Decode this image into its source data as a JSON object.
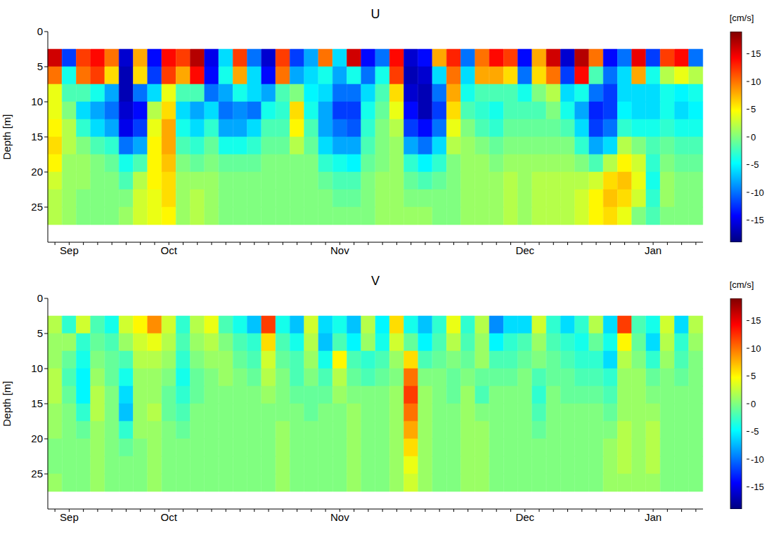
{
  "chart_data": [
    {
      "type": "heatmap",
      "title": "U",
      "y_label": "Depth [m]",
      "categories": [
        null,
        "Sep",
        null,
        null,
        null,
        null,
        null,
        null,
        "Oct",
        null,
        null,
        null,
        null,
        null,
        null,
        null,
        null,
        null,
        null,
        null,
        "Nov",
        null,
        null,
        null,
        null,
        null,
        null,
        null,
        null,
        null,
        null,
        null,
        null,
        "Dec",
        null,
        null,
        null,
        null,
        null,
        null,
        null,
        null,
        "Jan",
        null,
        null,
        null
      ],
      "ylim": [
        30,
        0
      ],
      "yticks": [
        0,
        5,
        10,
        15,
        20,
        25
      ],
      "depth_bins": [
        2.5,
        5,
        7.5,
        10,
        12.5,
        15,
        17.5,
        20,
        22.5,
        25,
        27.5
      ],
      "z": [
        [
          16,
          10,
          4,
          4,
          5,
          6,
          5,
          3,
          2,
          2
        ],
        [
          -12,
          -4,
          -2,
          0,
          2,
          2,
          1,
          1,
          1,
          1
        ],
        [
          12,
          10,
          -2,
          -6,
          -3,
          0,
          1,
          1,
          0,
          0
        ],
        [
          14,
          12,
          -4,
          -8,
          -6,
          -2,
          0,
          0,
          0,
          0
        ],
        [
          10,
          6,
          -8,
          -10,
          -8,
          -3,
          -1,
          0,
          0,
          0
        ],
        [
          -16,
          -17,
          -17,
          -16,
          -15,
          -10,
          -4,
          -2,
          0,
          1
        ],
        [
          8,
          6,
          -10,
          -14,
          -12,
          -8,
          -2,
          2,
          3,
          3
        ],
        [
          -14,
          -12,
          -6,
          2,
          4,
          5,
          5,
          5,
          4,
          4
        ],
        [
          14,
          12,
          4,
          6,
          8,
          8,
          7,
          6,
          6,
          5
        ],
        [
          12,
          8,
          -2,
          -6,
          -4,
          -2,
          0,
          1,
          1,
          1
        ],
        [
          17,
          14,
          -2,
          -8,
          -6,
          -3,
          -1,
          1,
          2,
          2
        ],
        [
          -15,
          -14,
          -10,
          -6,
          -3,
          -1,
          0,
          1,
          1,
          1
        ],
        [
          -6,
          -4,
          -8,
          -10,
          -8,
          -4,
          -1,
          0,
          0,
          0
        ],
        [
          12,
          8,
          -4,
          -9,
          -8,
          -4,
          -1,
          0,
          0,
          0
        ],
        [
          -10,
          -6,
          -6,
          -10,
          -6,
          -3,
          -1,
          0,
          0,
          0
        ],
        [
          -16,
          -14,
          -8,
          -4,
          -2,
          -1,
          0,
          0,
          0,
          0
        ],
        [
          12,
          10,
          -2,
          -3,
          -2,
          -1,
          0,
          0,
          0,
          0
        ],
        [
          -12,
          -8,
          0,
          6,
          5,
          2,
          0,
          0,
          0,
          0
        ],
        [
          -8,
          -6,
          -5,
          -4,
          -2,
          -1,
          0,
          0,
          0,
          0
        ],
        [
          10,
          -4,
          -6,
          -8,
          -8,
          -6,
          -3,
          -1,
          0,
          0
        ],
        [
          -6,
          -8,
          -10,
          -12,
          -10,
          -8,
          -4,
          -2,
          -1,
          0
        ],
        [
          16,
          -4,
          -10,
          -12,
          -11,
          -8,
          -5,
          -2,
          -1,
          0
        ],
        [
          -14,
          -10,
          -6,
          -4,
          -3,
          -2,
          -1,
          0,
          0,
          0
        ],
        [
          -10,
          -4,
          -2,
          -1,
          0,
          0,
          0,
          1,
          1,
          1
        ],
        [
          14,
          12,
          6,
          4,
          2,
          1,
          1,
          1,
          1,
          1
        ],
        [
          -16,
          -17,
          -16,
          -14,
          -12,
          -8,
          -3,
          -1,
          0,
          1
        ],
        [
          -14,
          -16,
          -17,
          -17,
          -14,
          -10,
          -5,
          -2,
          0,
          1
        ],
        [
          8,
          -6,
          -10,
          -12,
          -10,
          -6,
          -3,
          -1,
          0,
          0
        ],
        [
          13,
          10,
          8,
          6,
          4,
          2,
          0,
          0,
          0,
          0
        ],
        [
          -10,
          -6,
          -4,
          -2,
          0,
          1,
          1,
          1,
          1,
          1
        ],
        [
          10,
          8,
          -2,
          -3,
          -2,
          0,
          1,
          1,
          1,
          1
        ],
        [
          14,
          8,
          -2,
          -4,
          -3,
          -1,
          0,
          1,
          1,
          1
        ],
        [
          12,
          6,
          -2,
          -2,
          -1,
          0,
          1,
          2,
          2,
          2
        ],
        [
          -14,
          -10,
          -4,
          -2,
          -1,
          0,
          1,
          1,
          1,
          1
        ],
        [
          8,
          6,
          0,
          -2,
          -1,
          0,
          1,
          2,
          2,
          2
        ],
        [
          16,
          10,
          2,
          0,
          -1,
          0,
          1,
          2,
          2,
          2
        ],
        [
          -16,
          -12,
          -6,
          -4,
          -2,
          0,
          1,
          2,
          2,
          2
        ],
        [
          17,
          14,
          -4,
          -8,
          -6,
          -3,
          0,
          2,
          3,
          3
        ],
        [
          10,
          -2,
          -10,
          -13,
          -12,
          -8,
          -2,
          3,
          5,
          5
        ],
        [
          -14,
          -10,
          -12,
          -12,
          -10,
          -6,
          2,
          6,
          7,
          6
        ],
        [
          -10,
          -6,
          -6,
          -5,
          -3,
          2,
          5,
          7,
          6,
          4
        ],
        [
          15,
          8,
          -6,
          -6,
          -4,
          0,
          3,
          4,
          3,
          0
        ],
        [
          -12,
          -4,
          -6,
          -6,
          -4,
          -2,
          -3,
          -4,
          -3,
          -2
        ],
        [
          12,
          2,
          -4,
          -4,
          -3,
          -1,
          0,
          1,
          1,
          0
        ],
        [
          14,
          4,
          -5,
          -6,
          -4,
          -2,
          -1,
          0,
          0,
          0
        ],
        [
          -10,
          2,
          -4,
          -5,
          -4,
          -2,
          -1,
          0,
          0,
          0
        ]
      ],
      "colorbar": {
        "label": "[cm/s]",
        "range": [
          -19,
          19
        ],
        "ticks": [
          -15,
          -10,
          -5,
          0,
          5,
          10,
          15
        ]
      }
    },
    {
      "type": "heatmap",
      "title": "V",
      "y_label": "Depth [m]",
      "categories": [
        null,
        "Sep",
        null,
        null,
        null,
        null,
        null,
        null,
        "Oct",
        null,
        null,
        null,
        null,
        null,
        null,
        null,
        null,
        null,
        null,
        null,
        "Nov",
        null,
        null,
        null,
        null,
        null,
        null,
        null,
        null,
        null,
        null,
        null,
        null,
        "Dec",
        null,
        null,
        null,
        null,
        null,
        null,
        null,
        null,
        "Jan",
        null,
        null,
        null
      ],
      "ylim": [
        30,
        0
      ],
      "yticks": [
        0,
        5,
        10,
        15,
        20,
        25
      ],
      "depth_bins": [
        2.5,
        5,
        7.5,
        10,
        12.5,
        15,
        17.5,
        20,
        22.5,
        25,
        27.5
      ],
      "z": [
        [
          2,
          1,
          1,
          2,
          2,
          1,
          1,
          0,
          0,
          1
        ],
        [
          -3,
          1,
          -1,
          -2,
          -1,
          0,
          0,
          0,
          0,
          0
        ],
        [
          3,
          -3,
          -4,
          -5,
          -5,
          -3,
          -1,
          0,
          0,
          0
        ],
        [
          -2,
          -1,
          0,
          1,
          2,
          2,
          1,
          1,
          1,
          1
        ],
        [
          -4,
          -2,
          -1,
          -1,
          0,
          0,
          0,
          0,
          0,
          0
        ],
        [
          3,
          1,
          -2,
          -4,
          -6,
          -7,
          -3,
          -1,
          0,
          0
        ],
        [
          5,
          3,
          2,
          1,
          1,
          1,
          1,
          0,
          0,
          0
        ],
        [
          9,
          4,
          2,
          1,
          1,
          2,
          1,
          1,
          1,
          1
        ],
        [
          3,
          2,
          1,
          0,
          -1,
          -1,
          0,
          0,
          0,
          0
        ],
        [
          -3,
          -2,
          -3,
          -4,
          -3,
          -2,
          -1,
          0,
          0,
          0
        ],
        [
          2,
          1,
          0,
          -1,
          -1,
          0,
          0,
          0,
          0,
          0
        ],
        [
          4,
          2,
          1,
          0,
          0,
          0,
          0,
          0,
          0,
          0
        ],
        [
          -2,
          0,
          1,
          1,
          0,
          0,
          0,
          0,
          0,
          0
        ],
        [
          -4,
          -2,
          -1,
          0,
          0,
          0,
          0,
          0,
          0,
          0
        ],
        [
          -7,
          -3,
          -2,
          -1,
          0,
          0,
          0,
          0,
          0,
          0
        ],
        [
          12,
          6,
          3,
          2,
          1,
          0,
          0,
          0,
          0,
          0
        ],
        [
          -4,
          -2,
          -1,
          0,
          0,
          0,
          1,
          1,
          1,
          1
        ],
        [
          -7,
          -4,
          -2,
          -2,
          -1,
          0,
          0,
          0,
          0,
          0
        ],
        [
          3,
          2,
          1,
          0,
          -1,
          -1,
          0,
          0,
          0,
          0
        ],
        [
          -6,
          -7,
          -4,
          -2,
          -1,
          0,
          0,
          0,
          0,
          0
        ],
        [
          -4,
          -2,
          5,
          2,
          1,
          0,
          0,
          0,
          0,
          0
        ],
        [
          -7,
          -5,
          -2,
          -1,
          0,
          1,
          1,
          1,
          1,
          1
        ],
        [
          2,
          1,
          -3,
          -2,
          0,
          0,
          0,
          0,
          0,
          0
        ],
        [
          -5,
          -4,
          -2,
          -1,
          0,
          0,
          0,
          0,
          0,
          0
        ],
        [
          6,
          3,
          1,
          0,
          1,
          1,
          1,
          1,
          1,
          1
        ],
        [
          -4,
          -1,
          6,
          10,
          12,
          10,
          8,
          6,
          4,
          3
        ],
        [
          -7,
          -5,
          -2,
          0,
          1,
          1,
          1,
          1,
          1,
          1
        ],
        [
          -3,
          -2,
          -1,
          0,
          0,
          0,
          0,
          0,
          0,
          0
        ],
        [
          4,
          2,
          0,
          -1,
          -1,
          0,
          0,
          0,
          0,
          0
        ],
        [
          -3,
          -2,
          -1,
          0,
          1,
          1,
          1,
          1,
          1,
          1
        ],
        [
          2,
          1,
          1,
          -1,
          -2,
          0,
          1,
          1,
          1,
          1
        ],
        [
          -9,
          -5,
          -2,
          -1,
          0,
          0,
          0,
          0,
          0,
          0
        ],
        [
          -6,
          -3,
          -2,
          -1,
          0,
          0,
          0,
          0,
          0,
          0
        ],
        [
          -6,
          -2,
          -1,
          0,
          0,
          0,
          0,
          0,
          0,
          0
        ],
        [
          3,
          1,
          0,
          -2,
          -3,
          -2,
          -1,
          0,
          0,
          0
        ],
        [
          -3,
          -2,
          -1,
          -1,
          0,
          0,
          0,
          0,
          0,
          0
        ],
        [
          -6,
          -3,
          -2,
          -1,
          -1,
          0,
          0,
          0,
          0,
          0
        ],
        [
          -3,
          -4,
          -3,
          -2,
          -1,
          0,
          0,
          0,
          0,
          0
        ],
        [
          2,
          -1,
          -3,
          -2,
          -1,
          0,
          0,
          0,
          0,
          0
        ],
        [
          -6,
          -4,
          -6,
          -3,
          -2,
          -1,
          0,
          1,
          1,
          1
        ],
        [
          12,
          5,
          2,
          1,
          1,
          1,
          2,
          2,
          2,
          1
        ],
        [
          -2,
          -1,
          0,
          1,
          1,
          1,
          1,
          1,
          1,
          1
        ],
        [
          -4,
          -6,
          -3,
          -1,
          0,
          1,
          2,
          2,
          2,
          1
        ],
        [
          3,
          2,
          1,
          0,
          0,
          0,
          0,
          0,
          0,
          0
        ],
        [
          -6,
          -3,
          -2,
          -1,
          0,
          0,
          0,
          0,
          0,
          0
        ],
        [
          2,
          1,
          0,
          0,
          0,
          0,
          0,
          0,
          0,
          0
        ]
      ],
      "colorbar": {
        "label": "[cm/s]",
        "range": [
          -19,
          19
        ],
        "ticks": [
          -15,
          -10,
          -5,
          0,
          5,
          10,
          15
        ]
      }
    }
  ]
}
